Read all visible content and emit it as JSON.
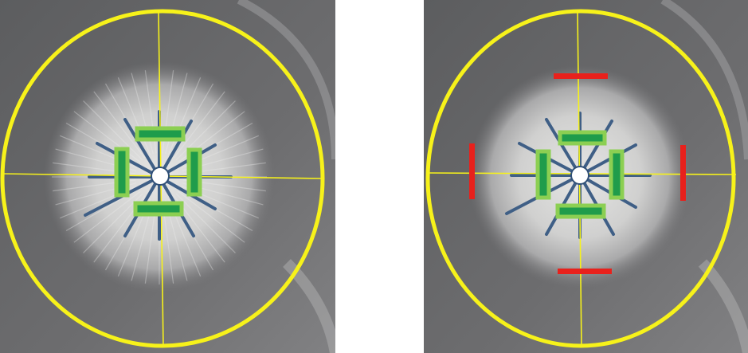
{
  "colors": {
    "background": "#ffffff",
    "plate": "#6b6b6d",
    "plate_dark": "#4f5052",
    "colony": "#d9d9d8",
    "crosshair": "#f7f21a",
    "radial_lines": "#3f5f86",
    "center_dot": "#ffffff",
    "green_fill": "#1f9c4b",
    "green_outline": "#8ccf52",
    "red_mark": "#e8211c"
  },
  "panels": [
    {
      "name": "left",
      "radial_line_count": 12,
      "green_bars": 4,
      "red_bars": 0
    },
    {
      "name": "right",
      "radial_line_count": 12,
      "green_bars": 4,
      "red_bars": 4
    }
  ]
}
